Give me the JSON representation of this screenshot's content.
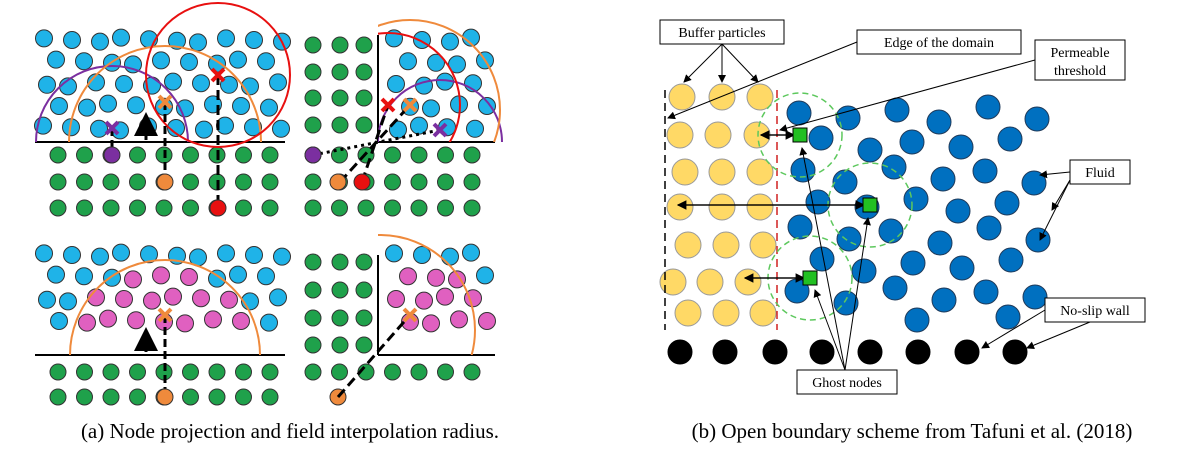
{
  "panel_a": {
    "caption": "(a) Node projection and field interpolation radius."
  },
  "panel_b": {
    "caption": "(b) Open boundary scheme from Tafuni et al. (2018)",
    "labels": {
      "buffer": "Buffer particles",
      "edge": "Edge of the domain",
      "permeable": [
        "Permeable",
        "threshold"
      ],
      "fluid": "Fluid",
      "wall": "No-slip wall",
      "ghost": "Ghost nodes"
    }
  }
}
